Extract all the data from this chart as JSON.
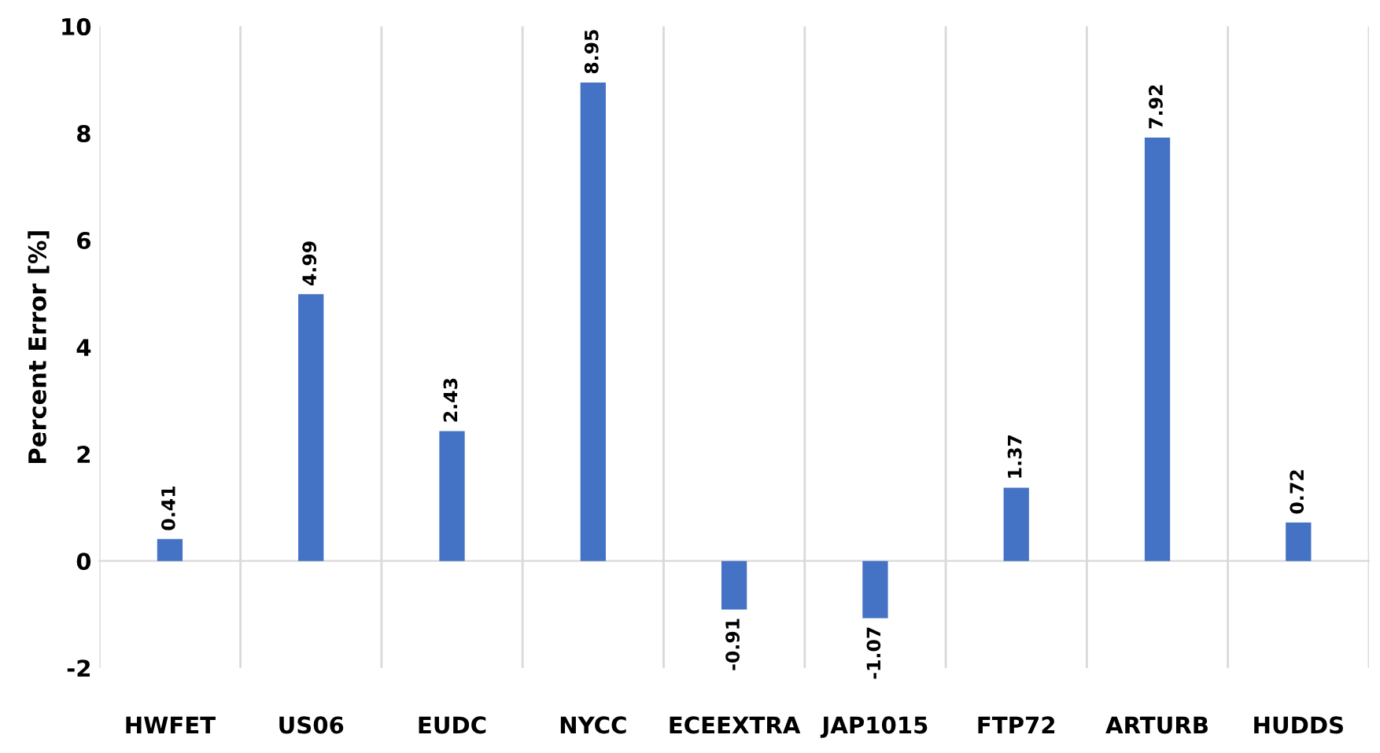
{
  "chart_data": {
    "type": "bar",
    "ylabel": "Percent Error [%]",
    "categories": [
      "HWFET",
      "US06",
      "EUDC",
      "NYCC",
      "ECEEXTRA",
      "JAP1015",
      "FTP72",
      "ARTURB",
      "HUDDS"
    ],
    "values": [
      0.41,
      4.99,
      2.43,
      8.95,
      -0.91,
      -1.07,
      1.37,
      7.92,
      0.72
    ],
    "color": "#4472c4",
    "ylim": [
      -2,
      10
    ],
    "yticks": [
      -2,
      0,
      2,
      4,
      6,
      8,
      10
    ],
    "grid": "x",
    "data_labels": true,
    "legend": false
  }
}
